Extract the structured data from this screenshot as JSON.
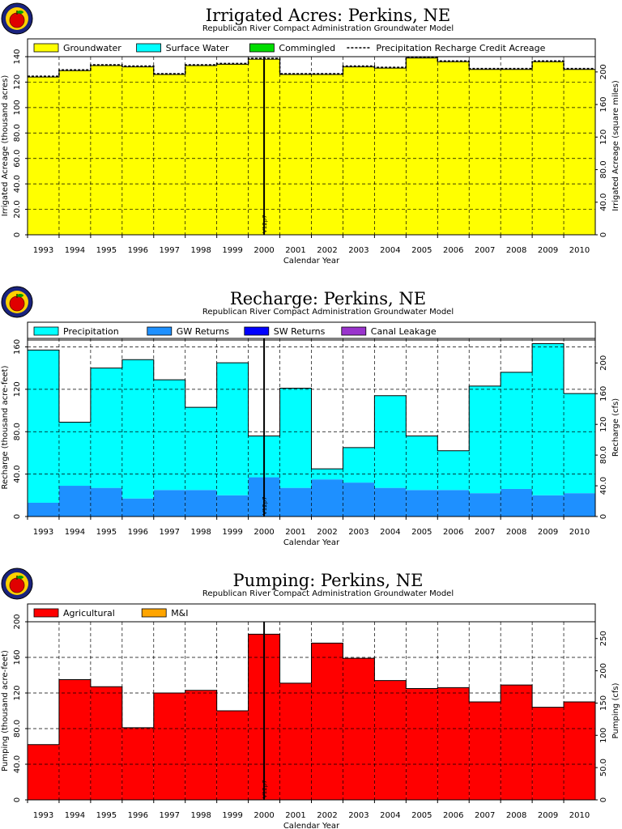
{
  "chart_data": [
    {
      "type": "area",
      "title": "Irrigated Acres: Perkins, NE",
      "subtitle": "Republican River Compact Administration Groundwater Model",
      "xlabel": "Calendar Year",
      "ylabel": "Irrigated Acreage (thousand acres)",
      "y2label": "Irrigated Acreage (square miles)",
      "categories": [
        "1993",
        "1994",
        "1995",
        "1996",
        "1997",
        "1998",
        "1999",
        "2000",
        "2001",
        "2002",
        "2003",
        "2004",
        "2005",
        "2006",
        "2007",
        "2008",
        "2009",
        "2010"
      ],
      "ylim": [
        0,
        140
      ],
      "yticks": [
        "0",
        "20.0",
        "40.0",
        "60.0",
        "80.0",
        "100",
        "120",
        "140"
      ],
      "y2lim": [
        0,
        218.75
      ],
      "y2ticks": [
        "0",
        "40.0",
        "80.0",
        "120",
        "160",
        "200"
      ],
      "legend_position": "top",
      "grid": true,
      "series": [
        {
          "name": "Groundwater",
          "color": "#ffff00",
          "values": [
            124,
            129,
            133,
            132,
            126,
            133,
            134,
            138,
            126,
            126,
            132,
            131,
            139,
            136,
            130,
            130,
            136,
            130
          ]
        },
        {
          "name": "Surface Water",
          "color": "#00ffff",
          "values": [
            0,
            0,
            0,
            0,
            0,
            0,
            0,
            0,
            0,
            0,
            0,
            0,
            0,
            0,
            0,
            0,
            0,
            0
          ]
        },
        {
          "name": "Commingled",
          "color": "#00dd00",
          "values": [
            0,
            0,
            0,
            0,
            0,
            0,
            0,
            0,
            0,
            0,
            0,
            0,
            0,
            0,
            0,
            0,
            0,
            0
          ]
        }
      ],
      "line_series": {
        "name": "Precipitation Recharge Credit Acreage",
        "values": [
          124,
          129,
          133,
          132,
          126,
          133,
          134,
          138,
          126,
          126,
          132,
          131,
          139,
          136,
          130,
          130,
          136,
          130
        ]
      },
      "marker_label": "V12p7"
    },
    {
      "type": "area",
      "title": "Recharge: Perkins, NE",
      "subtitle": "Republican River Compact Administration Groundwater Model",
      "xlabel": "Calendar Year",
      "ylabel": "Recharge (thousand acre-feet)",
      "y2label": "Recharge (cfs)",
      "categories": [
        "1993",
        "1994",
        "1995",
        "1996",
        "1997",
        "1998",
        "1999",
        "2000",
        "2001",
        "2002",
        "2003",
        "2004",
        "2005",
        "2006",
        "2007",
        "2008",
        "2009",
        "2010"
      ],
      "ylim": [
        0,
        168
      ],
      "yticks": [
        "0",
        "40.0",
        "80.0",
        "120",
        "160"
      ],
      "y2lim": [
        0,
        232
      ],
      "y2ticks": [
        "0",
        "40.0",
        "80.0",
        "120",
        "160",
        "200"
      ],
      "legend_position": "top",
      "grid": true,
      "series": [
        {
          "name": "Precipitation",
          "color": "#00ffff",
          "values": [
            144,
            60,
            113,
            131,
            104,
            78,
            125,
            39,
            94,
            10,
            33,
            87,
            51,
            37,
            101,
            110,
            143,
            94
          ]
        },
        {
          "name": "GW Returns",
          "color": "#1e90ff",
          "values": [
            13,
            29,
            27,
            17,
            25,
            25,
            20,
            37,
            27,
            35,
            32,
            27,
            25,
            25,
            22,
            26,
            20,
            22
          ]
        },
        {
          "name": "SW Returns",
          "color": "#0000ff",
          "values": [
            0,
            0,
            0,
            0,
            0,
            0,
            0,
            0,
            0,
            0,
            0,
            0,
            0,
            0,
            0,
            0,
            0,
            0
          ]
        },
        {
          "name": "Canal Leakage",
          "color": "#9933cc",
          "values": [
            0,
            0,
            0,
            0,
            0,
            0,
            0,
            0,
            0,
            0,
            0,
            0,
            0,
            0,
            0,
            0,
            0,
            0
          ]
        }
      ],
      "marker_label": "V12p7"
    },
    {
      "type": "area",
      "title": "Pumping: Perkins, NE",
      "subtitle": "Republican River Compact Administration Groundwater Model",
      "xlabel": "Calendar Year",
      "ylabel": "Pumping (thousand acre-feet)",
      "y2label": "Pumping (cfs)",
      "categories": [
        "1993",
        "1994",
        "1995",
        "1996",
        "1997",
        "1998",
        "1999",
        "2000",
        "2001",
        "2002",
        "2003",
        "2004",
        "2005",
        "2006",
        "2007",
        "2008",
        "2009",
        "2010"
      ],
      "ylim": [
        0,
        200
      ],
      "yticks": [
        "0",
        "40.0",
        "80.0",
        "120",
        "160",
        "200"
      ],
      "y2lim": [
        0,
        276
      ],
      "y2ticks": [
        "0",
        "50.0",
        "100",
        "150",
        "200",
        "250"
      ],
      "legend_position": "top",
      "grid": true,
      "series": [
        {
          "name": "Agricultural",
          "color": "#ff0000",
          "values": [
            62,
            135,
            127,
            81,
            120,
            123,
            100,
            186,
            131,
            176,
            159,
            134,
            125,
            126,
            110,
            129,
            104,
            110
          ]
        },
        {
          "name": "M&I",
          "color": "#ffa500",
          "values": [
            0,
            0,
            0,
            0,
            0,
            0,
            0,
            0,
            0,
            0,
            0,
            0,
            0,
            0,
            0,
            0,
            0,
            0
          ]
        }
      ],
      "marker_label": "V12p7"
    }
  ]
}
